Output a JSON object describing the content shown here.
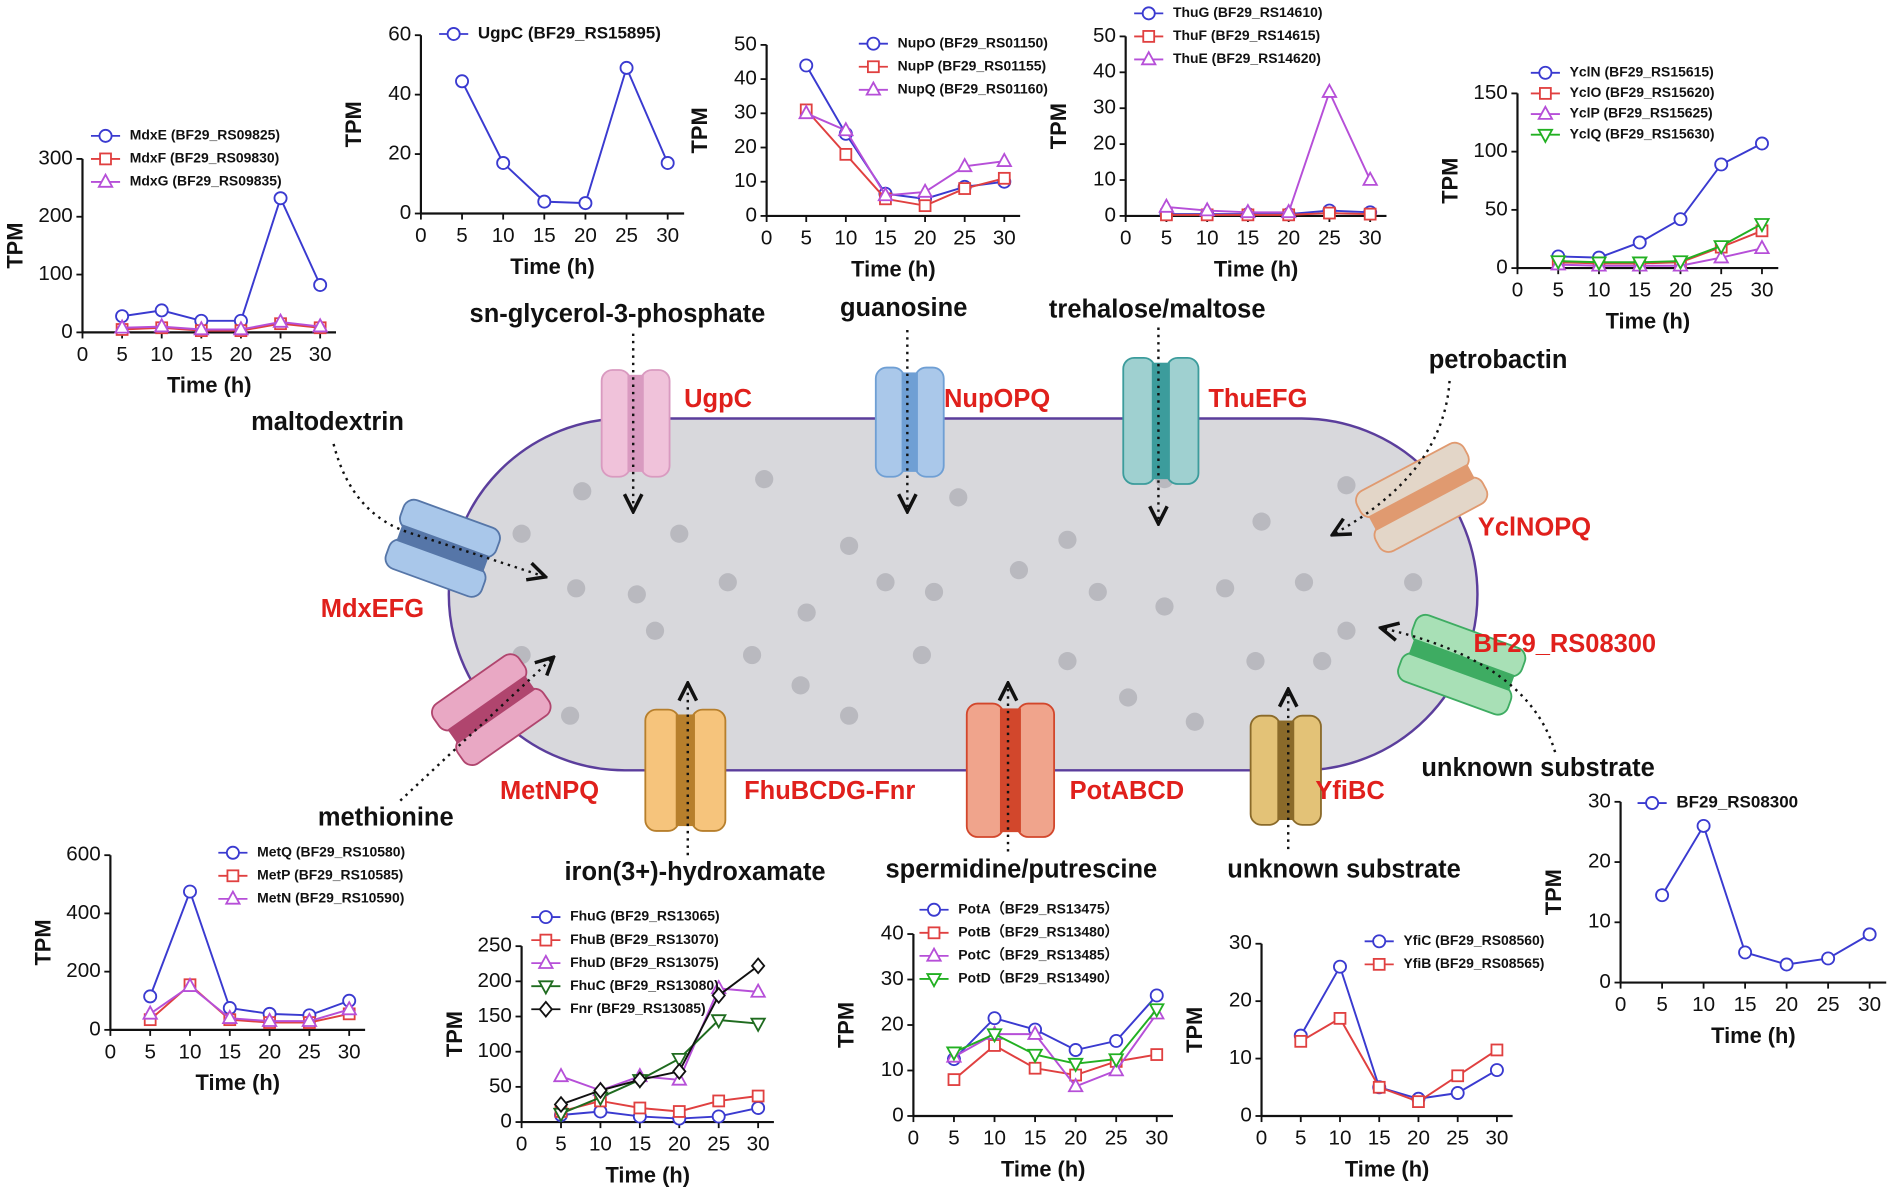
{
  "chart_data": [
    {
      "type": "line",
      "x": [
        5,
        10,
        15,
        20,
        25,
        30
      ],
      "xlim": [
        0,
        32
      ],
      "xticks": [
        0,
        5,
        10,
        15,
        20,
        25,
        30
      ],
      "ylim": [
        0,
        300
      ],
      "yticks": [
        0,
        100,
        200,
        300
      ],
      "x_label": "Time (h)",
      "y_label": "TPM",
      "series": [
        {
          "name": "MdxE (BF29_RS09825)",
          "color": "#3a3ad0",
          "marker": "circle",
          "values": [
            28,
            38,
            20,
            20,
            232,
            82
          ]
        },
        {
          "name": "MdxF (BF29_RS09830)",
          "color": "#e04040",
          "marker": "square",
          "values": [
            5,
            8,
            3,
            3,
            15,
            8
          ]
        },
        {
          "name": "MdxG (BF29_RS09835)",
          "color": "#b64fd8",
          "marker": "triangle-up",
          "values": [
            8,
            10,
            5,
            5,
            18,
            10
          ]
        }
      ]
    },
    {
      "type": "line",
      "x": [
        5,
        10,
        15,
        20,
        25,
        30
      ],
      "xlim": [
        0,
        32
      ],
      "xticks": [
        0,
        5,
        10,
        15,
        20,
        25,
        30
      ],
      "ylim": [
        0,
        60
      ],
      "yticks": [
        0,
        20,
        40,
        60
      ],
      "x_label": "Time (h)",
      "y_label": "TPM",
      "series": [
        {
          "name": "UgpC (BF29_RS15895)",
          "color": "#3a3ad0",
          "marker": "circle",
          "values": [
            44.5,
            17,
            4,
            3.5,
            49,
            17
          ]
        }
      ]
    },
    {
      "type": "line",
      "x": [
        5,
        10,
        15,
        20,
        25,
        30
      ],
      "xlim": [
        0,
        32
      ],
      "xticks": [
        0,
        5,
        10,
        15,
        20,
        25,
        30
      ],
      "ylim": [
        0,
        50
      ],
      "yticks": [
        0,
        10,
        20,
        30,
        40,
        50
      ],
      "x_label": "Time (h)",
      "y_label": "TPM",
      "series": [
        {
          "name": "NupO (BF29_RS01150)",
          "color": "#3a3ad0",
          "marker": "circle",
          "values": [
            44,
            24,
            6.5,
            5,
            8.5,
            10
          ]
        },
        {
          "name": "NupP (BF29_RS01155)",
          "color": "#e04040",
          "marker": "square",
          "values": [
            31,
            18,
            5,
            3,
            8,
            11
          ]
        },
        {
          "name": "NupQ (BF29_RS01160)",
          "color": "#b64fd8",
          "marker": "triangle-up",
          "values": [
            30,
            25,
            6,
            7,
            14.5,
            16
          ]
        }
      ]
    },
    {
      "type": "line",
      "x": [
        5,
        10,
        15,
        20,
        25,
        30
      ],
      "xlim": [
        0,
        32
      ],
      "xticks": [
        0,
        5,
        10,
        15,
        20,
        25,
        30
      ],
      "ylim": [
        0,
        50
      ],
      "yticks": [
        0,
        10,
        20,
        30,
        40,
        50
      ],
      "x_label": "Time (h)",
      "y_label": "TPM",
      "series": [
        {
          "name": "ThuG (BF29_RS14610)",
          "color": "#3a3ad0",
          "marker": "circle",
          "values": [
            0.5,
            0.5,
            0.5,
            0.5,
            1.5,
            1
          ]
        },
        {
          "name": "ThuF (BF29_RS14615)",
          "color": "#e04040",
          "marker": "square",
          "values": [
            0.3,
            0.3,
            0.3,
            0.3,
            0.8,
            0.5
          ]
        },
        {
          "name": "ThuE (BF29_RS14620)",
          "color": "#b64fd8",
          "marker": "triangle-up",
          "values": [
            2.5,
            1.5,
            1,
            1,
            34.5,
            10
          ]
        }
      ]
    },
    {
      "type": "line",
      "x": [
        5,
        10,
        15,
        20,
        25,
        30
      ],
      "xlim": [
        0,
        32
      ],
      "xticks": [
        0,
        5,
        10,
        15,
        20,
        25,
        30
      ],
      "ylim": [
        0,
        150
      ],
      "yticks": [
        0,
        50,
        100,
        150
      ],
      "x_label": "Time (h)",
      "y_label": "TPM",
      "series": [
        {
          "name": "YclN (BF29_RS15615)",
          "color": "#3a3ad0",
          "marker": "circle",
          "values": [
            10,
            9,
            22,
            42,
            89,
            107
          ]
        },
        {
          "name": "YclO (BF29_RS15620)",
          "color": "#e04040",
          "marker": "square",
          "values": [
            5,
            4,
            4,
            5,
            18,
            32
          ]
        },
        {
          "name": "YclP (BF29_RS15625)",
          "color": "#b64fd8",
          "marker": "triangle-up",
          "values": [
            3,
            2,
            2,
            2,
            9,
            17
          ]
        },
        {
          "name": "YclQ (BF29_RS15630)",
          "color": "#22b022",
          "marker": "triangle-down",
          "values": [
            6,
            5,
            5,
            6,
            19,
            38
          ]
        }
      ]
    },
    {
      "type": "line",
      "x": [
        5,
        10,
        15,
        20,
        25,
        30
      ],
      "xlim": [
        0,
        32
      ],
      "xticks": [
        0,
        5,
        10,
        15,
        20,
        25,
        30
      ],
      "ylim": [
        0,
        600
      ],
      "yticks": [
        0,
        200,
        400,
        600
      ],
      "x_label": "Time (h)",
      "y_label": "TPM",
      "series": [
        {
          "name": "MetQ (BF29_RS10580)",
          "color": "#3a3ad0",
          "marker": "circle",
          "values": [
            115,
            475,
            75,
            55,
            50,
            100
          ]
        },
        {
          "name": "MetP (BF29_RS10585)",
          "color": "#e04040",
          "marker": "square",
          "values": [
            35,
            155,
            35,
            25,
            25,
            55
          ]
        },
        {
          "name": "MetN (BF29_RS10590)",
          "color": "#b64fd8",
          "marker": "triangle-up",
          "values": [
            55,
            150,
            40,
            30,
            30,
            70
          ]
        }
      ]
    },
    {
      "type": "line",
      "x": [
        5,
        10,
        15,
        20,
        25,
        30
      ],
      "xlim": [
        0,
        32
      ],
      "xticks": [
        0,
        5,
        10,
        15,
        20,
        25,
        30
      ],
      "ylim": [
        0,
        250
      ],
      "yticks": [
        0,
        50,
        100,
        150,
        200,
        250
      ],
      "x_label": "Time (h)",
      "y_label": "TPM",
      "series": [
        {
          "name": "FhuG (BF29_RS13065)",
          "color": "#3a3ad0",
          "marker": "circle",
          "values": [
            10,
            15,
            8,
            5,
            8,
            20
          ]
        },
        {
          "name": "FhuB (BF29_RS13070)",
          "color": "#e04040",
          "marker": "square",
          "values": [
            15,
            30,
            20,
            15,
            30,
            37
          ]
        },
        {
          "name": "FhuD (BF29_RS13075)",
          "color": "#b64fd8",
          "marker": "triangle-up",
          "values": [
            65,
            45,
            65,
            60,
            190,
            185
          ]
        },
        {
          "name": "FhuC (BF29_RS13080)",
          "color": "#1f6b1f",
          "marker": "triangle-down",
          "values": [
            12,
            35,
            60,
            90,
            145,
            140
          ]
        },
        {
          "name": "Fnr (BF29_RS13085)",
          "color": "#111111",
          "marker": "diamond",
          "values": [
            25,
            45,
            60,
            72,
            180,
            222
          ]
        }
      ]
    },
    {
      "type": "line",
      "x": [
        5,
        10,
        15,
        20,
        25,
        30
      ],
      "xlim": [
        0,
        32
      ],
      "xticks": [
        0,
        5,
        10,
        15,
        20,
        25,
        30
      ],
      "ylim": [
        0,
        40
      ],
      "yticks": [
        0,
        10,
        20,
        30,
        40
      ],
      "x_label": "Time (h)",
      "y_label": "TPM",
      "series": [
        {
          "name": "PotA（BF29_RS13475）",
          "color": "#3a3ad0",
          "marker": "circle",
          "values": [
            12.5,
            21.5,
            19,
            14.5,
            16.5,
            26.5
          ]
        },
        {
          "name": "PotB（BF29_RS13480）",
          "color": "#e04040",
          "marker": "square",
          "values": [
            8,
            15.5,
            10.5,
            9,
            12,
            13.5
          ]
        },
        {
          "name": "PotC（BF29_RS13485）",
          "color": "#b64fd8",
          "marker": "triangle-up",
          "values": [
            13,
            18,
            18,
            6.5,
            10,
            22.5
          ]
        },
        {
          "name": "PotD（BF29_RS13490）",
          "color": "#22b022",
          "marker": "triangle-down",
          "values": [
            14,
            18,
            13.5,
            11.5,
            12.5,
            23.5
          ]
        }
      ]
    },
    {
      "type": "line",
      "x": [
        5,
        10,
        15,
        20,
        25,
        30
      ],
      "xlim": [
        0,
        32
      ],
      "xticks": [
        0,
        5,
        10,
        15,
        20,
        25,
        30
      ],
      "ylim": [
        0,
        30
      ],
      "yticks": [
        0,
        10,
        20,
        30
      ],
      "x_label": "Time (h)",
      "y_label": "TPM",
      "series": [
        {
          "name": "YfiC (BF29_RS08560)",
          "color": "#3a3ad0",
          "marker": "circle",
          "values": [
            14,
            26,
            5,
            3,
            4,
            8
          ]
        },
        {
          "name": "YfiB (BF29_RS08565)",
          "color": "#e04040",
          "marker": "square",
          "values": [
            13,
            17,
            5,
            2.5,
            7,
            11.5
          ]
        }
      ]
    },
    {
      "type": "line",
      "x": [
        5,
        10,
        15,
        20,
        25,
        30
      ],
      "xlim": [
        0,
        32
      ],
      "xticks": [
        0,
        5,
        10,
        15,
        20,
        25,
        30
      ],
      "ylim": [
        0,
        30
      ],
      "yticks": [
        0,
        10,
        20,
        30
      ],
      "x_label": "Time (h)",
      "y_label": "TPM",
      "series": [
        {
          "name": "BF29_RS08300",
          "color": "#3a3ad0",
          "marker": "circle",
          "values": [
            14.5,
            26,
            5,
            3,
            4,
            8
          ]
        }
      ]
    }
  ],
  "diagram": {
    "substrates": [
      "sn-glycerol-3-phosphate",
      "guanosine",
      "trehalose/maltose",
      "petrobactin",
      "maltodextrin",
      "methionine",
      "iron(3+)-hydroxamate",
      "spermidine/putrescine",
      "unknown substrate",
      "unknown substrate"
    ],
    "transporters": [
      "UgpC",
      "NupOPQ",
      "ThuEFG",
      "YclNOPQ",
      "MdxEFG",
      "BF29_RS08300",
      "MetNPQ",
      "FhuBCDG-Fnr",
      "PotABCD",
      "YfiBC"
    ]
  }
}
